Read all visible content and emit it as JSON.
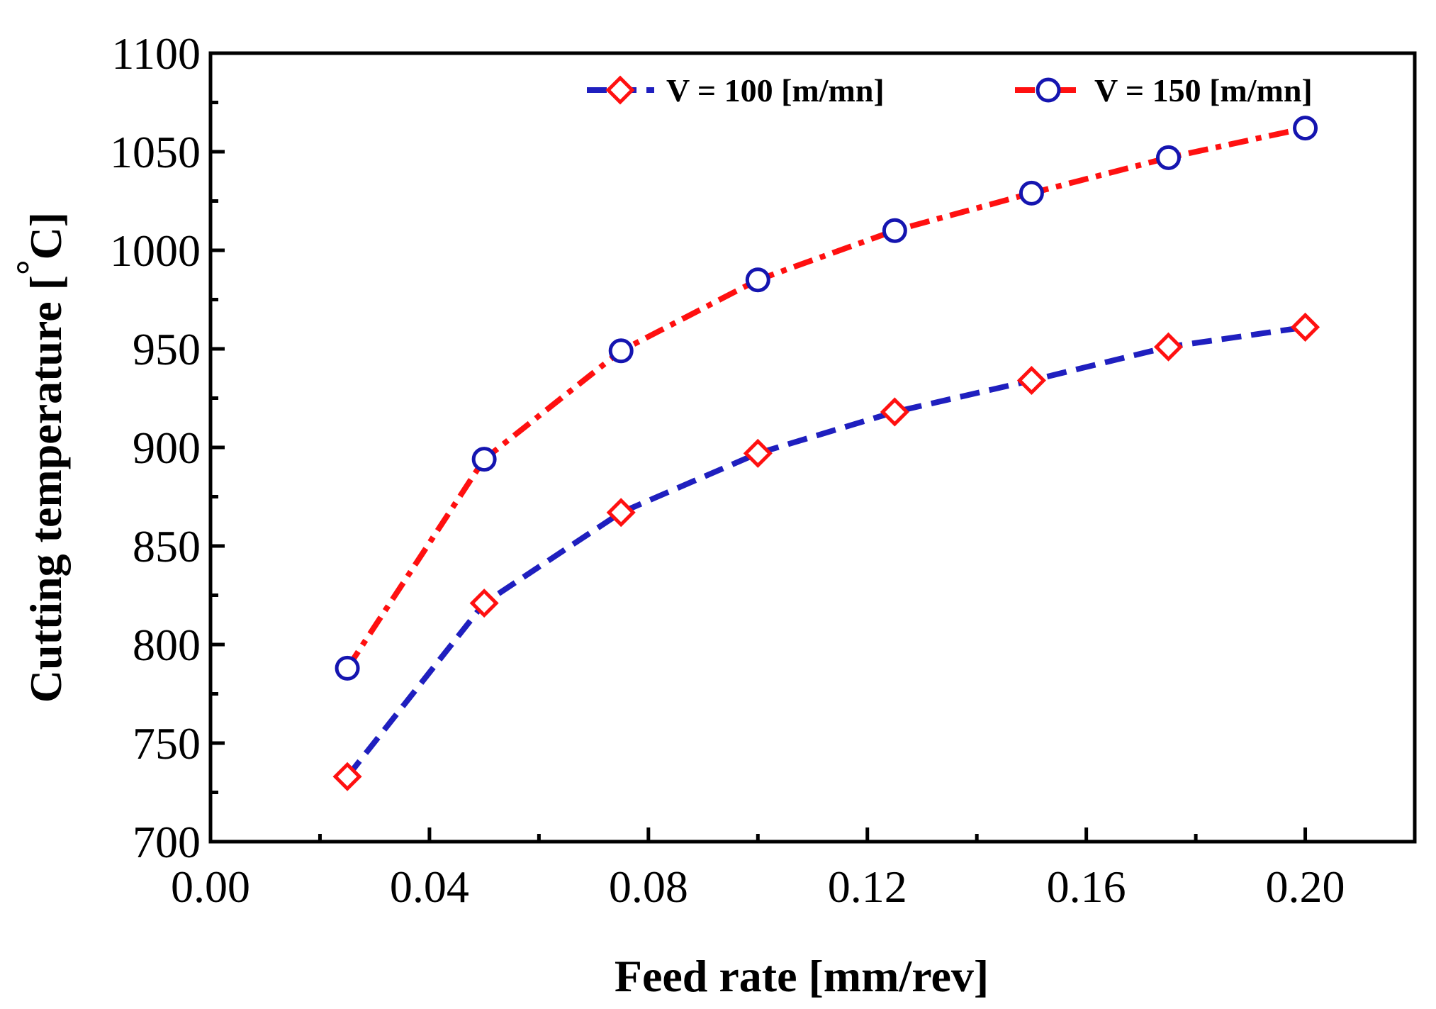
{
  "chart_data": {
    "type": "line",
    "title": "",
    "xlabel": "Feed rate [mm/rev]",
    "ylabel_main": "Cutting temperature [",
    "ylabel_degree": "°",
    "ylabel_unit": "C]",
    "xlim": [
      0.0,
      0.22
    ],
    "ylim": [
      700,
      1100
    ],
    "x_ticks": [
      0.0,
      0.04,
      0.08,
      0.12,
      0.16,
      0.2
    ],
    "x_tick_labels": [
      "0.00",
      "0.04",
      "0.08",
      "0.12",
      "0.16",
      "0.20"
    ],
    "y_ticks": [
      700,
      750,
      800,
      850,
      900,
      950,
      1000,
      1050,
      1100
    ],
    "y_tick_labels": [
      "700",
      "750",
      "800",
      "850",
      "900",
      "950",
      "1000",
      "1050",
      "1100"
    ],
    "grid": false,
    "legend_position": "top-right",
    "series": [
      {
        "name": "V = 100 [m/mn]",
        "line_color": "#1f1fbf",
        "marker_color": "#ff1010",
        "marker": "diamond",
        "line_style": "dashed",
        "x": [
          0.025,
          0.05,
          0.075,
          0.1,
          0.125,
          0.15,
          0.175,
          0.2
        ],
        "values": [
          733,
          821,
          867,
          897,
          918,
          934,
          951,
          961
        ]
      },
      {
        "name": "V = 150 [m/mn]",
        "line_color": "#ff1010",
        "marker_color": "#1515b0",
        "marker": "circle",
        "line_style": "dash-dot",
        "x": [
          0.025,
          0.05,
          0.075,
          0.1,
          0.125,
          0.15,
          0.175,
          0.2
        ],
        "values": [
          788,
          894,
          949,
          985,
          1010,
          1029,
          1047,
          1062
        ]
      }
    ]
  }
}
